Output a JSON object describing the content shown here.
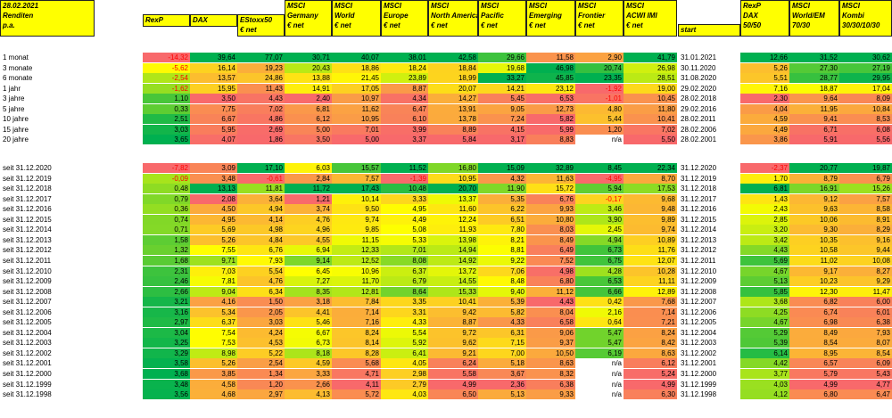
{
  "corner": {
    "date": "28.02.2021",
    "line2": "Renditen",
    "line3": "p.a."
  },
  "headers": [
    [
      "RexP"
    ],
    [
      "DAX"
    ],
    [
      "EStoxx50",
      "€ net"
    ],
    [
      "MSCI",
      "Germany",
      "€ net"
    ],
    [
      "MSCI",
      "World",
      "€ net"
    ],
    [
      "MSCI",
      "Europe",
      "€ net"
    ],
    [
      "MSCI",
      "North America",
      "€ net"
    ],
    [
      "MSCI",
      "Pacific",
      "€ net"
    ],
    [
      "MSCI",
      "Emerging",
      "€ net"
    ],
    [
      "MSCI",
      "Frontier",
      "€ net"
    ],
    [
      "MSCI",
      "ACWI IMI",
      "€ net"
    ]
  ],
  "start_header": "start",
  "kombi_headers": [
    [
      "RexP",
      "DAX",
      "50/50"
    ],
    [
      "MSCI",
      "World/EM",
      "70/30"
    ],
    [
      "MSCI",
      "Kombi",
      "30/30/10/30"
    ]
  ],
  "group1": [
    {
      "label": "1 monat",
      "values": [
        "-14,32",
        "39,64",
        "77,07",
        "30,71",
        "40,07",
        "38,01",
        "42,58",
        "29,66",
        "11,58",
        "2,90",
        "41,79"
      ],
      "start": "31.01.2021",
      "kombi": [
        "12,66",
        "31,52",
        "30,62"
      ]
    },
    {
      "label": "3 monate",
      "values": [
        "-5,62",
        "16,14",
        "19,23",
        "20,43",
        "18,86",
        "18,24",
        "18,84",
        "19,68",
        "46,98",
        "20,74",
        "26,98"
      ],
      "start": "30.11.2020",
      "kombi": [
        "5,26",
        "27,30",
        "27,19"
      ]
    },
    {
      "label": "6 monate",
      "values": [
        "-2,54",
        "13,57",
        "24,86",
        "13,88",
        "21,45",
        "23,89",
        "18,99",
        "33,27",
        "45,85",
        "23,35",
        "28,51"
      ],
      "start": "31.08.2020",
      "kombi": [
        "5,51",
        "28,77",
        "29,95"
      ]
    },
    {
      "label": "1 jahr",
      "values": [
        "-1,62",
        "15,95",
        "11,43",
        "14,91",
        "17,05",
        "8,87",
        "20,07",
        "14,21",
        "23,12",
        "-1,92",
        "19,00"
      ],
      "start": "29.02.2020",
      "kombi": [
        "7,16",
        "18,87",
        "17,04"
      ]
    },
    {
      "label": "3 jahre",
      "values": [
        "1,10",
        "3,50",
        "4,43",
        "2,40",
        "10,97",
        "4,34",
        "14,27",
        "5,45",
        "6,53",
        "-1,01",
        "10,45"
      ],
      "start": "28.02.2018",
      "kombi": [
        "2,30",
        "9,64",
        "8,09"
      ]
    },
    {
      "label": "5 jahre",
      "values": [
        "0,33",
        "7,75",
        "7,02",
        "6,81",
        "11,62",
        "6,47",
        "13,91",
        "9,05",
        "12,73",
        "4,80",
        "11,80"
      ],
      "start": "29.02.2016",
      "kombi": [
        "4,04",
        "11,95",
        "10,84"
      ]
    },
    {
      "label": "10 jahre",
      "values": [
        "2,51",
        "6,67",
        "4,86",
        "6,12",
        "10,95",
        "6,10",
        "13,78",
        "7,24",
        "5,82",
        "5,44",
        "10,41"
      ],
      "start": "28.02.2011",
      "kombi": [
        "4,59",
        "9,41",
        "8,53"
      ]
    },
    {
      "label": "15 jahre",
      "values": [
        "3,03",
        "5,95",
        "2,69",
        "5,00",
        "7,01",
        "3,99",
        "8,89",
        "4,15",
        "5,99",
        "1,20",
        "7,02"
      ],
      "start": "28.02.2006",
      "kombi": [
        "4,49",
        "6,71",
        "6,08"
      ]
    },
    {
      "label": "20 jahre",
      "values": [
        "3,65",
        "4,07",
        "1,86",
        "3,50",
        "5,00",
        "3,37",
        "5,84",
        "3,17",
        "8,83",
        "n/a",
        "5,50"
      ],
      "start": "28.02.2001",
      "kombi": [
        "3,86",
        "5,91",
        "5,56"
      ]
    }
  ],
  "group2": [
    {
      "label": "seit 31.12.2020",
      "values": [
        "-7,82",
        "3,09",
        "17,10",
        "6,03",
        "15,57",
        "11,52",
        "16,80",
        "15,09",
        "32,89",
        "8,45",
        "22,34"
      ],
      "start": "31.12.2020",
      "kombi": [
        "-2,37",
        "20,77",
        "19,87"
      ]
    },
    {
      "label": "seit 31.12.2019",
      "values": [
        "-0,09",
        "3,48",
        "-0,61",
        "2,84",
        "7,57",
        "-1,39",
        "10,95",
        "4,32",
        "11,63",
        "-4,95",
        "8,70"
      ],
      "start": "31.12.2019",
      "kombi": [
        "1,70",
        "8,79",
        "6,79"
      ]
    },
    {
      "label": "seit 31.12.2018",
      "values": [
        "0,48",
        "13,13",
        "11,81",
        "11,72",
        "17,43",
        "10,48",
        "20,70",
        "11,90",
        "15,72",
        "5,94",
        "17,53"
      ],
      "start": "31.12.2018",
      "kombi": [
        "6,81",
        "16,91",
        "15,26"
      ]
    },
    {
      "label": "seit 31.12.2017",
      "values": [
        "0,79",
        "2,08",
        "3,64",
        "1,21",
        "10,14",
        "3,33",
        "13,37",
        "5,35",
        "6,76",
        "-0,17",
        "9,68"
      ],
      "start": "31.12.2017",
      "kombi": [
        "1,43",
        "9,12",
        "7,57"
      ]
    },
    {
      "label": "seit 31.12.2016",
      "values": [
        "0,36",
        "4,50",
        "4,94",
        "3,74",
        "9,50",
        "4,95",
        "11,60",
        "6,22",
        "9,93",
        "3,46",
        "9,48"
      ],
      "start": "31.12.2016",
      "kombi": [
        "2,43",
        "9,63",
        "8,58"
      ]
    },
    {
      "label": "seit 31.12.2015",
      "values": [
        "0,74",
        "4,95",
        "4,14",
        "4,76",
        "9,74",
        "4,49",
        "12,24",
        "6,51",
        "10,80",
        "3,90",
        "9,89"
      ],
      "start": "31.12.2015",
      "kombi": [
        "2,85",
        "10,06",
        "8,91"
      ]
    },
    {
      "label": "seit 31.12.2014",
      "values": [
        "0,71",
        "5,69",
        "4,98",
        "4,96",
        "9,85",
        "5,08",
        "11,93",
        "7,80",
        "8,03",
        "2,45",
        "9,74"
      ],
      "start": "31.12.2014",
      "kombi": [
        "3,20",
        "9,30",
        "8,29"
      ]
    },
    {
      "label": "seit 31.12.2013",
      "values": [
        "1,58",
        "5,26",
        "4,84",
        "4,55",
        "11,15",
        "5,33",
        "13,98",
        "8,21",
        "8,49",
        "4,94",
        "10,89"
      ],
      "start": "31.12.2013",
      "kombi": [
        "3,42",
        "10,35",
        "9,16"
      ]
    },
    {
      "label": "seit 31.12.2012",
      "values": [
        "1,32",
        "7,55",
        "6,76",
        "6,94",
        "12,33",
        "7,01",
        "14,94",
        "8,81",
        "6,49",
        "6,73",
        "11,76"
      ],
      "start": "31.12.2012",
      "kombi": [
        "4,43",
        "10,58",
        "9,44"
      ]
    },
    {
      "label": "seit 31.12.2011",
      "values": [
        "1,68",
        "9,71",
        "7,93",
        "9,14",
        "12,52",
        "8,08",
        "14,92",
        "9,22",
        "7,52",
        "6,75",
        "12,07"
      ],
      "start": "31.12.2011",
      "kombi": [
        "5,69",
        "11,02",
        "10,08"
      ]
    },
    {
      "label": "seit 31.12.2010",
      "values": [
        "2,31",
        "7,03",
        "5,54",
        "6,45",
        "10,96",
        "6,37",
        "13,72",
        "7,06",
        "4,98",
        "4,28",
        "10,28"
      ],
      "start": "31.12.2010",
      "kombi": [
        "4,67",
        "9,17",
        "8,27"
      ]
    },
    {
      "label": "seit 31.12.2009",
      "values": [
        "2,46",
        "7,81",
        "4,76",
        "7,27",
        "11,70",
        "6,79",
        "14,55",
        "8,48",
        "6,80",
        "6,53",
        "11,11"
      ],
      "start": "31.12.2009",
      "kombi": [
        "5,13",
        "10,23",
        "9,29"
      ]
    },
    {
      "label": "seit 31.12.2008",
      "values": [
        "2,66",
        "9,04",
        "6,34",
        "8,35",
        "12,81",
        "8,64",
        "15,33",
        "9,40",
        "11,12",
        "6,66",
        "12,89"
      ],
      "start": "31.12.2008",
      "kombi": [
        "5,85",
        "12,30",
        "11,47"
      ]
    },
    {
      "label": "seit 31.12.2007",
      "values": [
        "3,21",
        "4,16",
        "1,50",
        "3,18",
        "7,84",
        "3,35",
        "10,41",
        "5,39",
        "4,43",
        "0,42",
        "7,68"
      ],
      "start": "31.12.2007",
      "kombi": [
        "3,68",
        "6,82",
        "6,00"
      ]
    },
    {
      "label": "seit 31.12.2006",
      "values": [
        "3,16",
        "5,34",
        "2,05",
        "4,41",
        "7,14",
        "3,31",
        "9,42",
        "5,82",
        "8,04",
        "2,16",
        "7,14"
      ],
      "start": "31.12.2006",
      "kombi": [
        "4,25",
        "6,74",
        "6,01"
      ]
    },
    {
      "label": "seit 31.12.2005",
      "values": [
        "2,97",
        "6,37",
        "3,03",
        "5,46",
        "7,16",
        "4,33",
        "8,87",
        "4,33",
        "6,58",
        "0,64",
        "7,21"
      ],
      "start": "31.12.2005",
      "kombi": [
        "4,67",
        "6,98",
        "6,38"
      ]
    },
    {
      "label": "seit 31.12.2004",
      "values": [
        "3,04",
        "7,54",
        "4,24",
        "6,67",
        "8,24",
        "5,54",
        "9,72",
        "6,31",
        "9,06",
        "5,47",
        "8,24"
      ],
      "start": "31.12.2004",
      "kombi": [
        "5,29",
        "8,49",
        "7,93"
      ]
    },
    {
      "label": "seit 31.12.2003",
      "values": [
        "3,25",
        "7,53",
        "4,53",
        "6,73",
        "8,14",
        "5,92",
        "9,62",
        "7,15",
        "9,37",
        "5,47",
        "8,42"
      ],
      "start": "31.12.2003",
      "kombi": [
        "5,39",
        "8,54",
        "8,07"
      ]
    },
    {
      "label": "seit 31.12.2002",
      "values": [
        "3,29",
        "8,98",
        "5,22",
        "8,18",
        "8,28",
        "6,41",
        "9,21",
        "7,00",
        "10,50",
        "6,19",
        "8,63"
      ],
      "start": "31.12.2002",
      "kombi": [
        "6,14",
        "8,95",
        "8,54"
      ]
    },
    {
      "label": "seit 31.12.2001",
      "values": [
        "3,58",
        "5,26",
        "2,54",
        "4,59",
        "5,68",
        "4,05",
        "6,24",
        "5,18",
        "8,63",
        "n/a",
        "6,12"
      ],
      "start": "31.12.2001",
      "kombi": [
        "4,42",
        "6,57",
        "6,09"
      ]
    },
    {
      "label": "seit 31.12.2000",
      "values": [
        "3,68",
        "3,85",
        "1,34",
        "3,33",
        "4,71",
        "2,98",
        "5,58",
        "3,67",
        "8,32",
        "n/a",
        "5,24"
      ],
      "start": "31.12.2000",
      "kombi": [
        "3,77",
        "5,79",
        "5,43"
      ]
    },
    {
      "label": "seit 31.12.1999",
      "values": [
        "3,48",
        "4,58",
        "1,20",
        "2,66",
        "4,11",
        "2,79",
        "4,99",
        "2,36",
        "6,38",
        "n/a",
        "4,99"
      ],
      "start": "31.12.1999",
      "kombi": [
        "4,03",
        "4,99",
        "4,77"
      ]
    },
    {
      "label": "seit 31.12.1998",
      "values": [
        "3,56",
        "4,68",
        "2,97",
        "4,13",
        "5,72",
        "4,03",
        "6,50",
        "5,13",
        "9,33",
        "n/a",
        "6,30"
      ],
      "start": "31.12.1998",
      "kombi": [
        "4,12",
        "6,80",
        "6,47"
      ]
    }
  ],
  "colors": {
    "header_yellow": "#ffff00",
    "scale_low": "#f8696b",
    "scale_mid": "#ffff00",
    "scale_high": "#00b050",
    "negative_text": "#ff0000"
  }
}
